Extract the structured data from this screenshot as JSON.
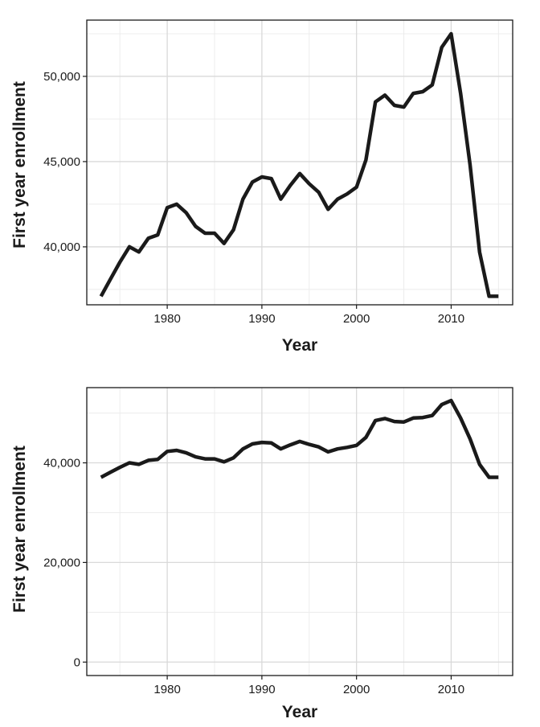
{
  "chart_data": [
    {
      "type": "line",
      "xlabel": "Year",
      "ylabel": "First year enrollment",
      "xlim": [
        1971.5,
        2016.5
      ],
      "ylim": [
        36600,
        53300
      ],
      "x_ticks": [
        1980,
        1990,
        2000,
        2010
      ],
      "x_tick_labels": [
        "1980",
        "1990",
        "2000",
        "2010"
      ],
      "y_ticks": [
        40000,
        45000,
        50000
      ],
      "y_tick_labels": [
        "40,000",
        "45,000",
        "50,000"
      ],
      "grid": true,
      "line_color": "#1a1a1a",
      "series": [
        {
          "x": [
            1973,
            1974,
            1975,
            1976,
            1977,
            1978,
            1979,
            1980,
            1981,
            1982,
            1983,
            1984,
            1985,
            1986,
            1987,
            1988,
            1989,
            1990,
            1991,
            1992,
            1993,
            1994,
            1995,
            1996,
            1997,
            1998,
            1999,
            2000,
            2001,
            2002,
            2003,
            2004,
            2005,
            2006,
            2007,
            2008,
            2009,
            2010,
            2011,
            2012,
            2013,
            2014,
            2015
          ],
          "values": [
            37100,
            38100,
            39100,
            40000,
            39700,
            40500,
            40700,
            42300,
            42500,
            42000,
            41200,
            40800,
            40800,
            40200,
            41000,
            42800,
            43800,
            44100,
            44000,
            42800,
            43600,
            44300,
            43700,
            43200,
            42200,
            42800,
            43100,
            43500,
            45100,
            48500,
            48900,
            48300,
            48200,
            49000,
            49100,
            49500,
            51700,
            52500,
            49000,
            44800,
            39700,
            37100,
            37100
          ]
        }
      ]
    },
    {
      "type": "line",
      "xlabel": "Year",
      "ylabel": "First year enrollment",
      "xlim": [
        1971.5,
        2016.5
      ],
      "ylim": [
        -2700,
        55100
      ],
      "x_ticks": [
        1980,
        1990,
        2000,
        2010
      ],
      "x_tick_labels": [
        "1980",
        "1990",
        "2000",
        "2010"
      ],
      "y_ticks": [
        0,
        20000,
        40000
      ],
      "y_tick_labels": [
        "0",
        "20,000",
        "40,000"
      ],
      "grid": true,
      "line_color": "#1a1a1a",
      "series": [
        {
          "x": [
            1973,
            1974,
            1975,
            1976,
            1977,
            1978,
            1979,
            1980,
            1981,
            1982,
            1983,
            1984,
            1985,
            1986,
            1987,
            1988,
            1989,
            1990,
            1991,
            1992,
            1993,
            1994,
            1995,
            1996,
            1997,
            1998,
            1999,
            2000,
            2001,
            2002,
            2003,
            2004,
            2005,
            2006,
            2007,
            2008,
            2009,
            2010,
            2011,
            2012,
            2013,
            2014,
            2015
          ],
          "values": [
            37100,
            38100,
            39100,
            40000,
            39700,
            40500,
            40700,
            42300,
            42500,
            42000,
            41200,
            40800,
            40800,
            40200,
            41000,
            42800,
            43800,
            44100,
            44000,
            42800,
            43600,
            44300,
            43700,
            43200,
            42200,
            42800,
            43100,
            43500,
            45100,
            48500,
            48900,
            48300,
            48200,
            49000,
            49100,
            49500,
            51700,
            52500,
            49000,
            44800,
            39700,
            37100,
            37100
          ]
        }
      ]
    }
  ]
}
